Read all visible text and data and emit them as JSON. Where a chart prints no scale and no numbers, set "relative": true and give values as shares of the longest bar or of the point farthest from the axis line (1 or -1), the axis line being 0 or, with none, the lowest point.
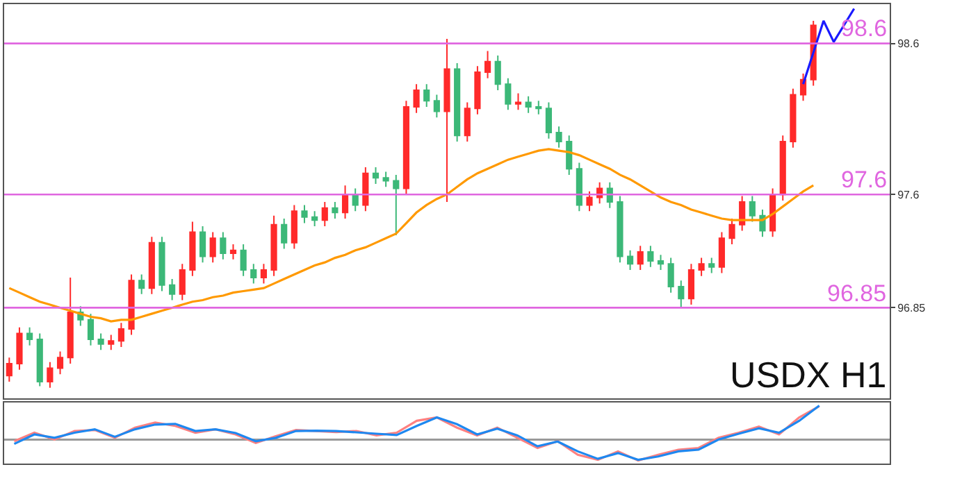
{
  "chart_data": [
    {
      "type": "candlestick",
      "tick_labels": "y",
      "categories": [
        null,
        null,
        null,
        null,
        null,
        null,
        null,
        null,
        null,
        null,
        null,
        null,
        null,
        null,
        null,
        null,
        null,
        null,
        null,
        null,
        null,
        null,
        null,
        null,
        null,
        null,
        null,
        null,
        null,
        null,
        null,
        null,
        null,
        null,
        null,
        null,
        null,
        null,
        null,
        null,
        null,
        null,
        null,
        null,
        null,
        null,
        null,
        null,
        null,
        null,
        null,
        null,
        null,
        null,
        null,
        null,
        null,
        null,
        null,
        null,
        null,
        null,
        null,
        null,
        null,
        null,
        null,
        null,
        null,
        null,
        null,
        null,
        null,
        null,
        null,
        null,
        null,
        null,
        null,
        null,
        null,
        null,
        null,
        null,
        null,
        null,
        null
      ],
      "ohlc": [
        [
          96.4,
          96.52,
          96.36,
          96.48
        ],
        [
          96.48,
          96.72,
          96.44,
          96.68
        ],
        [
          96.68,
          96.72,
          96.6,
          96.64
        ],
        [
          96.64,
          96.68,
          96.33,
          96.36
        ],
        [
          96.36,
          96.49,
          96.32,
          96.45
        ],
        [
          96.45,
          96.56,
          96.41,
          96.52
        ],
        [
          96.52,
          97.05,
          96.48,
          96.82
        ],
        [
          96.82,
          96.86,
          96.73,
          96.77
        ],
        [
          96.77,
          96.81,
          96.6,
          96.64
        ],
        [
          96.64,
          96.68,
          96.57,
          96.61
        ],
        [
          96.61,
          96.67,
          96.57,
          96.63
        ],
        [
          96.63,
          96.75,
          96.59,
          96.71
        ],
        [
          96.71,
          97.07,
          96.67,
          97.03
        ],
        [
          97.03,
          97.07,
          96.94,
          96.98
        ],
        [
          96.98,
          97.32,
          96.94,
          97.28
        ],
        [
          97.28,
          97.32,
          96.96,
          97.0
        ],
        [
          97.0,
          97.04,
          96.9,
          96.94
        ],
        [
          96.94,
          97.14,
          96.9,
          97.1
        ],
        [
          97.1,
          97.42,
          97.06,
          97.35
        ],
        [
          97.35,
          97.39,
          97.15,
          97.19
        ],
        [
          97.19,
          97.35,
          97.15,
          97.31
        ],
        [
          97.31,
          97.35,
          97.17,
          97.21
        ],
        [
          97.21,
          97.27,
          97.17,
          97.23
        ],
        [
          97.23,
          97.27,
          97.06,
          97.1
        ],
        [
          97.1,
          97.14,
          97.01,
          97.05
        ],
        [
          97.05,
          97.14,
          97.01,
          97.1
        ],
        [
          97.1,
          97.46,
          97.06,
          97.4
        ],
        [
          97.4,
          97.44,
          97.24,
          97.28
        ],
        [
          97.28,
          97.53,
          97.24,
          97.49
        ],
        [
          97.49,
          97.53,
          97.41,
          97.45
        ],
        [
          97.45,
          97.49,
          97.39,
          97.43
        ],
        [
          97.43,
          97.55,
          97.39,
          97.51
        ],
        [
          97.51,
          97.55,
          97.44,
          97.48
        ],
        [
          97.48,
          97.66,
          97.44,
          97.6
        ],
        [
          97.6,
          97.64,
          97.49,
          97.53
        ],
        [
          97.53,
          97.78,
          97.49,
          97.74
        ],
        [
          97.74,
          97.78,
          97.67,
          97.71
        ],
        [
          97.71,
          97.75,
          97.65,
          97.69
        ],
        [
          97.69,
          97.73,
          97.33,
          97.64
        ],
        [
          97.64,
          98.22,
          97.6,
          98.18
        ],
        [
          98.18,
          98.33,
          98.14,
          98.29
        ],
        [
          98.29,
          98.33,
          98.18,
          98.22
        ],
        [
          98.22,
          98.26,
          98.11,
          98.15
        ],
        [
          98.15,
          98.63,
          97.55,
          98.43
        ],
        [
          98.43,
          98.47,
          97.95,
          97.99
        ],
        [
          97.99,
          98.21,
          97.95,
          98.17
        ],
        [
          98.17,
          98.45,
          98.13,
          98.41
        ],
        [
          98.41,
          98.55,
          98.37,
          98.48
        ],
        [
          98.48,
          98.52,
          98.29,
          98.33
        ],
        [
          98.33,
          98.37,
          98.16,
          98.2
        ],
        [
          98.2,
          98.27,
          98.16,
          98.21
        ],
        [
          98.21,
          98.25,
          98.14,
          98.18
        ],
        [
          98.18,
          98.22,
          98.13,
          98.17
        ],
        [
          98.17,
          98.21,
          97.97,
          98.01
        ],
        [
          98.01,
          98.05,
          97.91,
          97.95
        ],
        [
          97.95,
          97.99,
          97.73,
          97.77
        ],
        [
          97.77,
          97.81,
          97.49,
          97.53
        ],
        [
          97.53,
          97.62,
          97.49,
          97.58
        ],
        [
          97.58,
          97.68,
          97.54,
          97.64
        ],
        [
          97.64,
          97.68,
          97.51,
          97.55
        ],
        [
          97.55,
          97.59,
          97.15,
          97.19
        ],
        [
          97.19,
          97.23,
          97.1,
          97.14
        ],
        [
          97.14,
          97.26,
          97.1,
          97.22
        ],
        [
          97.22,
          97.26,
          97.12,
          97.16
        ],
        [
          97.16,
          97.2,
          97.1,
          97.14
        ],
        [
          97.14,
          97.18,
          96.95,
          96.99
        ],
        [
          96.99,
          97.03,
          96.85,
          96.91
        ],
        [
          96.91,
          97.14,
          96.87,
          97.1
        ],
        [
          97.1,
          97.18,
          97.06,
          97.14
        ],
        [
          97.14,
          97.18,
          97.08,
          97.12
        ],
        [
          97.12,
          97.35,
          97.08,
          97.31
        ],
        [
          97.31,
          97.44,
          97.27,
          97.4
        ],
        [
          97.4,
          97.59,
          97.36,
          97.55
        ],
        [
          97.55,
          97.59,
          97.42,
          97.46
        ],
        [
          97.46,
          97.5,
          97.32,
          97.36
        ],
        [
          97.36,
          97.64,
          97.32,
          97.6
        ],
        [
          97.6,
          97.99,
          97.56,
          97.95
        ],
        [
          97.95,
          98.3,
          97.91,
          98.26
        ],
        [
          98.26,
          98.4,
          98.22,
          98.36
        ],
        [
          98.36,
          98.75,
          98.32,
          98.72
        ],
        null,
        null,
        null,
        null,
        null,
        null,
        null
      ],
      "series": [
        {
          "type": "line",
          "color": "#ff9900",
          "values": [
            96.98,
            96.95,
            96.92,
            96.89,
            96.87,
            96.85,
            96.83,
            96.81,
            96.79,
            96.78,
            96.76,
            96.77,
            96.77,
            96.79,
            96.81,
            96.83,
            96.85,
            96.87,
            96.89,
            96.9,
            96.92,
            96.93,
            96.95,
            96.96,
            96.97,
            96.98,
            97.01,
            97.04,
            97.07,
            97.1,
            97.13,
            97.15,
            97.18,
            97.2,
            97.23,
            97.25,
            97.28,
            97.31,
            97.34,
            97.41,
            97.48,
            97.53,
            97.57,
            97.6,
            97.65,
            97.7,
            97.74,
            97.77,
            97.8,
            97.83,
            97.85,
            97.87,
            97.89,
            97.9,
            97.89,
            97.88,
            97.86,
            97.83,
            97.8,
            97.77,
            97.73,
            97.7,
            97.66,
            97.62,
            97.58,
            97.55,
            97.53,
            97.5,
            97.48,
            97.46,
            97.44,
            97.43,
            97.43,
            97.43,
            97.43,
            97.47,
            97.52,
            97.57,
            97.62,
            97.66,
            null,
            null,
            null,
            null,
            null,
            null,
            null
          ]
        },
        {
          "type": "line",
          "color": "#1a1aff",
          "values": [
            null,
            null,
            null,
            null,
            null,
            null,
            null,
            null,
            null,
            null,
            null,
            null,
            null,
            null,
            null,
            null,
            null,
            null,
            null,
            null,
            null,
            null,
            null,
            null,
            null,
            null,
            null,
            null,
            null,
            null,
            null,
            null,
            null,
            null,
            null,
            null,
            null,
            null,
            null,
            null,
            null,
            null,
            null,
            null,
            null,
            null,
            null,
            null,
            null,
            null,
            null,
            null,
            null,
            null,
            null,
            null,
            null,
            null,
            null,
            null,
            null,
            null,
            null,
            null,
            null,
            null,
            null,
            null,
            null,
            null,
            null,
            null,
            null,
            null,
            null,
            null,
            null,
            null,
            98.33,
            98.54,
            98.75,
            98.61,
            98.72,
            98.83,
            null,
            null,
            null
          ]
        }
      ],
      "ylim": [
        96.25,
        98.86
      ],
      "yticks": [
        96.85,
        97.6,
        98.6
      ],
      "ref_lines": [
        {
          "axis": "y",
          "value": 98.6,
          "label": "98.6",
          "color": "#e066e0"
        },
        {
          "axis": "y",
          "value": 97.6,
          "label": "97.6",
          "color": "#e066e0"
        },
        {
          "axis": "y",
          "value": 96.85,
          "label": "96.85",
          "color": "#e066e0"
        }
      ],
      "annotations": [
        "USDX H1"
      ]
    },
    {
      "type": "line",
      "relative": true,
      "tick_labels": false,
      "categories": [
        null,
        null,
        null,
        null,
        null,
        null,
        null,
        null,
        null,
        null,
        null,
        null,
        null,
        null,
        null,
        null,
        null,
        null,
        null,
        null,
        null,
        null,
        null,
        null,
        null,
        null,
        null,
        null,
        null,
        null,
        null,
        null,
        null,
        null,
        null,
        null,
        null,
        null,
        null,
        null,
        null,
        null,
        null,
        null
      ],
      "series": [
        {
          "color": "#ff8080",
          "values": [
            -0.05,
            0.2,
            0.0,
            0.25,
            0.28,
            0.05,
            0.35,
            0.5,
            0.4,
            0.2,
            0.3,
            0.15,
            -0.1,
            0.1,
            0.28,
            0.25,
            0.22,
            0.25,
            0.12,
            0.2,
            0.55,
            0.65,
            0.35,
            0.12,
            0.35,
            0.05,
            -0.25,
            -0.05,
            -0.45,
            -0.6,
            -0.35,
            -0.62,
            -0.45,
            -0.3,
            -0.25,
            0.05,
            0.2,
            0.38,
            0.15,
            0.65,
            0.98,
            null,
            null,
            null
          ]
        },
        {
          "color": "#1e88f0",
          "values": [
            -0.13,
            0.15,
            0.05,
            0.2,
            0.3,
            0.08,
            0.3,
            0.44,
            0.46,
            0.25,
            0.3,
            0.19,
            -0.05,
            0.05,
            0.25,
            0.26,
            0.25,
            0.21,
            0.17,
            0.13,
            0.4,
            0.65,
            0.45,
            0.15,
            0.32,
            0.12,
            -0.2,
            -0.06,
            -0.35,
            -0.57,
            -0.4,
            -0.6,
            -0.5,
            -0.35,
            -0.3,
            0,
            0.17,
            0.33,
            0.2,
            0.55,
            1.0,
            null,
            null,
            null
          ]
        }
      ]
    }
  ]
}
